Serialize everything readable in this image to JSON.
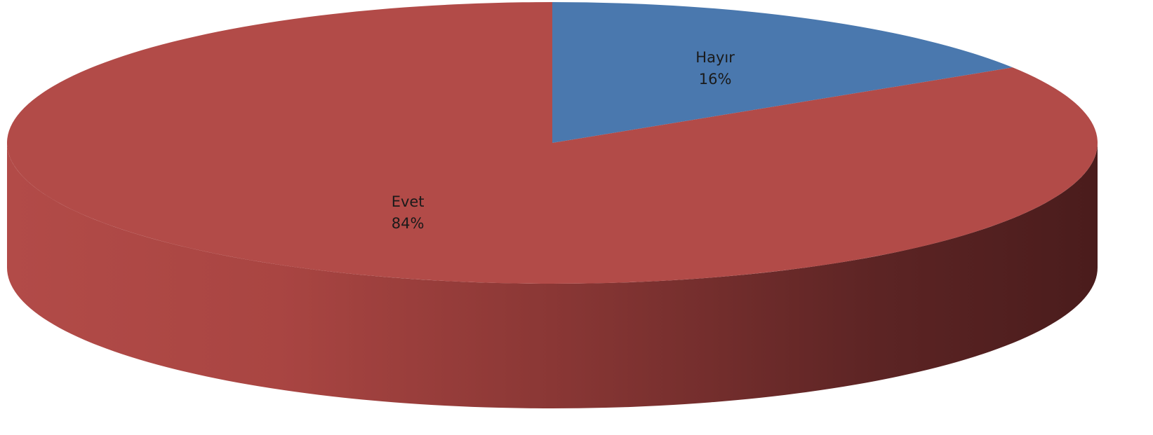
{
  "chart_data": {
    "type": "pie",
    "style": "3d",
    "slices": [
      {
        "label": "Hayır",
        "value": 16,
        "value_label": "16%",
        "color": "#4a78ae"
      },
      {
        "label": "Evet",
        "value": 84,
        "value_label": "84%",
        "color": "#b24b48"
      }
    ],
    "side_color_light": "#b24b48",
    "side_color_dark": "#4a1c1c",
    "legend": "none",
    "title": ""
  }
}
